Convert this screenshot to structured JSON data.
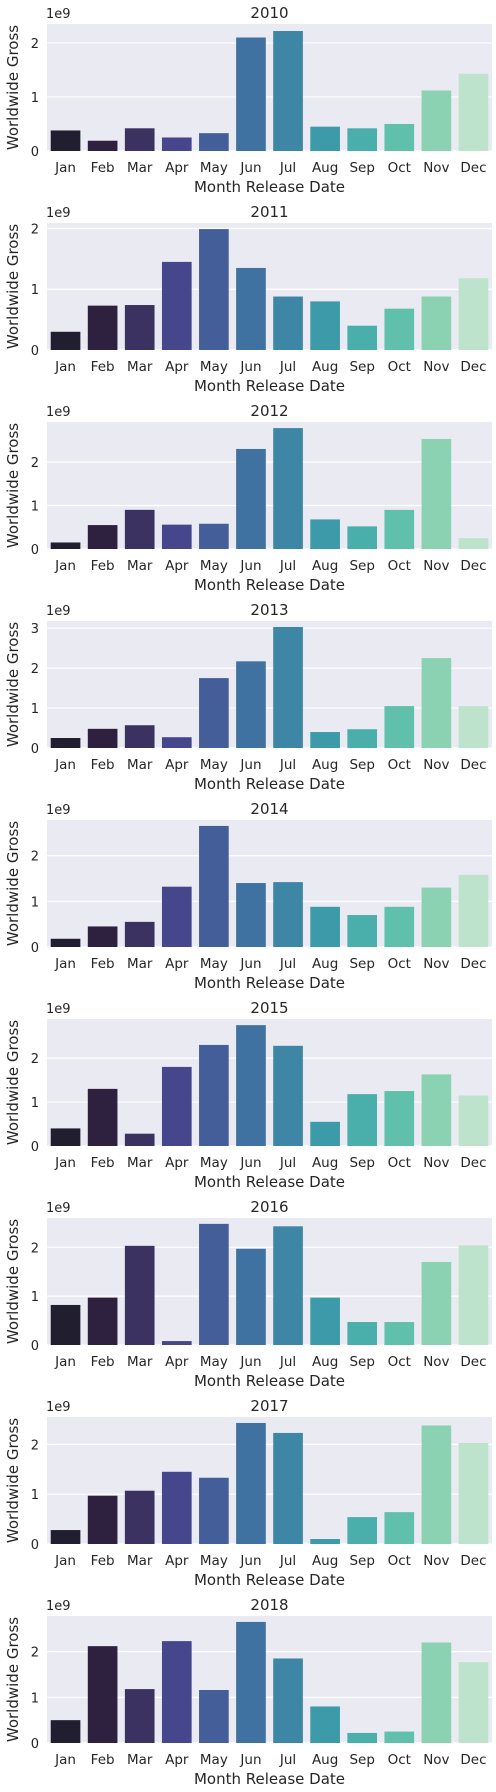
{
  "palette": [
    "#211f2f",
    "#2e2140",
    "#3b3262",
    "#45468b",
    "#445e9a",
    "#3f72a0",
    "#3d86a5",
    "#3d9aa8",
    "#4aaeaa",
    "#60c0ab",
    "#8ad2b1",
    "#bde3cd"
  ],
  "chart_data": [
    {
      "type": "bar",
      "title": "2010",
      "xlabel": "Month Release Date",
      "ylabel": "Worldwide Gross",
      "offset_label": "1e9",
      "categories": [
        "Jan",
        "Feb",
        "Mar",
        "Apr",
        "May",
        "Jun",
        "Jul",
        "Aug",
        "Sep",
        "Oct",
        "Nov",
        "Dec"
      ],
      "values": [
        0.38,
        0.19,
        0.42,
        0.25,
        0.33,
        2.1,
        2.22,
        0.45,
        0.42,
        0.5,
        1.12,
        1.43
      ],
      "yticks": [
        0,
        1,
        2
      ],
      "ylim": [
        0,
        2.35
      ],
      "grid": true
    },
    {
      "type": "bar",
      "title": "2011",
      "xlabel": "Month Release Date",
      "ylabel": "Worldwide Gross",
      "offset_label": "1e9",
      "categories": [
        "Jan",
        "Feb",
        "Mar",
        "Apr",
        "May",
        "Jun",
        "Jul",
        "Aug",
        "Sep",
        "Oct",
        "Nov",
        "Dec"
      ],
      "values": [
        0.3,
        0.73,
        0.74,
        1.45,
        1.99,
        1.35,
        0.88,
        0.8,
        0.4,
        0.68,
        0.88,
        1.18
      ],
      "yticks": [
        0,
        1,
        2
      ],
      "ylim": [
        0,
        2.09
      ],
      "grid": true
    },
    {
      "type": "bar",
      "title": "2012",
      "xlabel": "Month Release Date",
      "ylabel": "Worldwide Gross",
      "offset_label": "1e9",
      "categories": [
        "Jan",
        "Feb",
        "Mar",
        "Apr",
        "May",
        "Jun",
        "Jul",
        "Aug",
        "Sep",
        "Oct",
        "Nov",
        "Dec"
      ],
      "values": [
        0.15,
        0.55,
        0.9,
        0.56,
        0.58,
        2.3,
        2.78,
        0.68,
        0.52,
        0.9,
        2.53,
        0.25
      ],
      "yticks": [
        0,
        1,
        2
      ],
      "ylim": [
        0,
        2.92
      ],
      "grid": true
    },
    {
      "type": "bar",
      "title": "2013",
      "xlabel": "Month Release Date",
      "ylabel": "Worldwide Gross",
      "offset_label": "1e9",
      "categories": [
        "Jan",
        "Feb",
        "Mar",
        "Apr",
        "May",
        "Jun",
        "Jul",
        "Aug",
        "Sep",
        "Oct",
        "Nov",
        "Dec"
      ],
      "values": [
        0.25,
        0.48,
        0.57,
        0.27,
        1.75,
        2.17,
        3.03,
        0.4,
        0.47,
        1.05,
        2.25,
        1.05
      ],
      "yticks": [
        0,
        1,
        2,
        3
      ],
      "ylim": [
        0,
        3.18
      ],
      "grid": true
    },
    {
      "type": "bar",
      "title": "2014",
      "xlabel": "Month Release Date",
      "ylabel": "Worldwide Gross",
      "offset_label": "1e9",
      "categories": [
        "Jan",
        "Feb",
        "Mar",
        "Apr",
        "May",
        "Jun",
        "Jul",
        "Aug",
        "Sep",
        "Oct",
        "Nov",
        "Dec"
      ],
      "values": [
        0.18,
        0.45,
        0.55,
        1.32,
        2.65,
        1.4,
        1.42,
        0.88,
        0.7,
        0.88,
        1.3,
        1.58
      ],
      "yticks": [
        0,
        1,
        2
      ],
      "ylim": [
        0,
        2.78
      ],
      "grid": true
    },
    {
      "type": "bar",
      "title": "2015",
      "xlabel": "Month Release Date",
      "ylabel": "Worldwide Gross",
      "offset_label": "1e9",
      "categories": [
        "Jan",
        "Feb",
        "Mar",
        "Apr",
        "May",
        "Jun",
        "Jul",
        "Aug",
        "Sep",
        "Oct",
        "Nov",
        "Dec"
      ],
      "values": [
        0.4,
        1.3,
        0.28,
        1.8,
        2.3,
        2.75,
        2.28,
        0.55,
        1.18,
        1.25,
        1.63,
        1.15
      ],
      "yticks": [
        0,
        1,
        2
      ],
      "ylim": [
        0,
        2.89
      ],
      "grid": true
    },
    {
      "type": "bar",
      "title": "2016",
      "xlabel": "Month Release Date",
      "ylabel": "Worldwide Gross",
      "offset_label": "1e9",
      "categories": [
        "Jan",
        "Feb",
        "Mar",
        "Apr",
        "May",
        "Jun",
        "Jul",
        "Aug",
        "Sep",
        "Oct",
        "Nov",
        "Dec"
      ],
      "values": [
        0.82,
        0.97,
        2.03,
        0.08,
        2.48,
        1.97,
        2.43,
        0.97,
        0.47,
        0.47,
        1.7,
        2.04
      ],
      "yticks": [
        0,
        1,
        2
      ],
      "ylim": [
        0,
        2.6
      ],
      "grid": true
    },
    {
      "type": "bar",
      "title": "2017",
      "xlabel": "Month Release Date",
      "ylabel": "Worldwide Gross",
      "offset_label": "1e9",
      "categories": [
        "Jan",
        "Feb",
        "Mar",
        "Apr",
        "May",
        "Jun",
        "Jul",
        "Aug",
        "Sep",
        "Oct",
        "Nov",
        "Dec"
      ],
      "values": [
        0.28,
        0.97,
        1.07,
        1.45,
        1.33,
        2.43,
        2.23,
        0.1,
        0.54,
        0.64,
        2.38,
        2.03
      ],
      "yticks": [
        0,
        1,
        2
      ],
      "ylim": [
        0,
        2.55
      ],
      "grid": true
    },
    {
      "type": "bar",
      "title": "2018",
      "xlabel": "Month Release Date",
      "ylabel": "Worldwide Gross",
      "offset_label": "1e9",
      "categories": [
        "Jan",
        "Feb",
        "Mar",
        "Apr",
        "May",
        "Jun",
        "Jul",
        "Aug",
        "Sep",
        "Oct",
        "Nov",
        "Dec"
      ],
      "values": [
        0.5,
        2.12,
        1.18,
        2.23,
        1.16,
        2.65,
        1.85,
        0.8,
        0.22,
        0.25,
        2.2,
        1.77
      ],
      "yticks": [
        0,
        1,
        2
      ],
      "ylim": [
        0,
        2.78
      ],
      "grid": true
    }
  ]
}
